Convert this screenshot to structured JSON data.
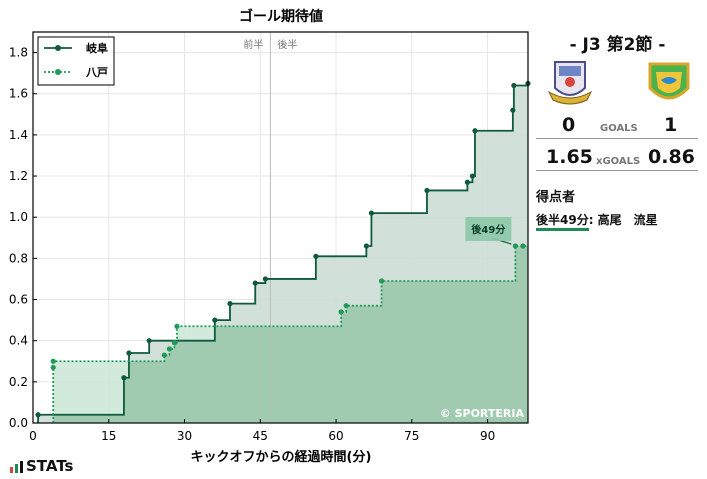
{
  "chart_data": {
    "type": "line",
    "title": "ゴール期待値",
    "xlabel": "キックオフからの経過時間(分)",
    "ylabel": "",
    "xlim": [
      0,
      98
    ],
    "ylim": [
      0,
      1.9
    ],
    "xticks": [
      0,
      15,
      30,
      45,
      60,
      75,
      90
    ],
    "yticks": [
      0.0,
      0.2,
      0.4,
      0.6,
      0.8,
      1.0,
      1.2,
      1.4,
      1.6,
      1.8
    ],
    "halftime_x": 47,
    "halftime_labels": {
      "first": "前半",
      "second": "後半"
    },
    "legend_position": "top-left",
    "watermark": "© SPORTERIA",
    "series": [
      {
        "name": "岐阜",
        "color": "#0f5a3c",
        "fill": "#cdddd6",
        "style": "solid",
        "points": [
          [
            1,
            0.04
          ],
          [
            18,
            0.22
          ],
          [
            19,
            0.34
          ],
          [
            23,
            0.4
          ],
          [
            36,
            0.5
          ],
          [
            39,
            0.58
          ],
          [
            44,
            0.68
          ],
          [
            46,
            0.7
          ],
          [
            56,
            0.81
          ],
          [
            66,
            0.86
          ],
          [
            67,
            1.02
          ],
          [
            78,
            1.13
          ],
          [
            86,
            1.17
          ],
          [
            87,
            1.2
          ],
          [
            87.5,
            1.42
          ],
          [
            95,
            1.52
          ],
          [
            95.2,
            1.64
          ],
          [
            98,
            1.65
          ]
        ]
      },
      {
        "name": "八戸",
        "color": "#1f9a57",
        "fill": "#cce8d7",
        "style": "dotted",
        "points": [
          [
            4,
            0.27
          ],
          [
            4,
            0.3
          ],
          [
            26,
            0.33
          ],
          [
            27,
            0.36
          ],
          [
            28,
            0.39
          ],
          [
            28.5,
            0.47
          ],
          [
            61,
            0.54
          ],
          [
            62,
            0.57
          ],
          [
            69,
            0.69
          ],
          [
            95.5,
            0.86
          ],
          [
            97,
            0.86
          ]
        ]
      }
    ],
    "annotation": {
      "label": "後49分",
      "x": 95.5,
      "y": 0.86
    }
  },
  "match": {
    "title": "- J3 第2節 -",
    "home_score": "0",
    "away_score": "1",
    "goals_label": "GOALS",
    "home_xg": "1.65",
    "away_xg": "0.86",
    "xgoals_label": "xGOALS"
  },
  "scorers": {
    "title": "得点者",
    "items": [
      {
        "time": "後半49分",
        "name": ": 高尾　流星"
      }
    ]
  },
  "brand": {
    "logo_text": "STATs"
  }
}
